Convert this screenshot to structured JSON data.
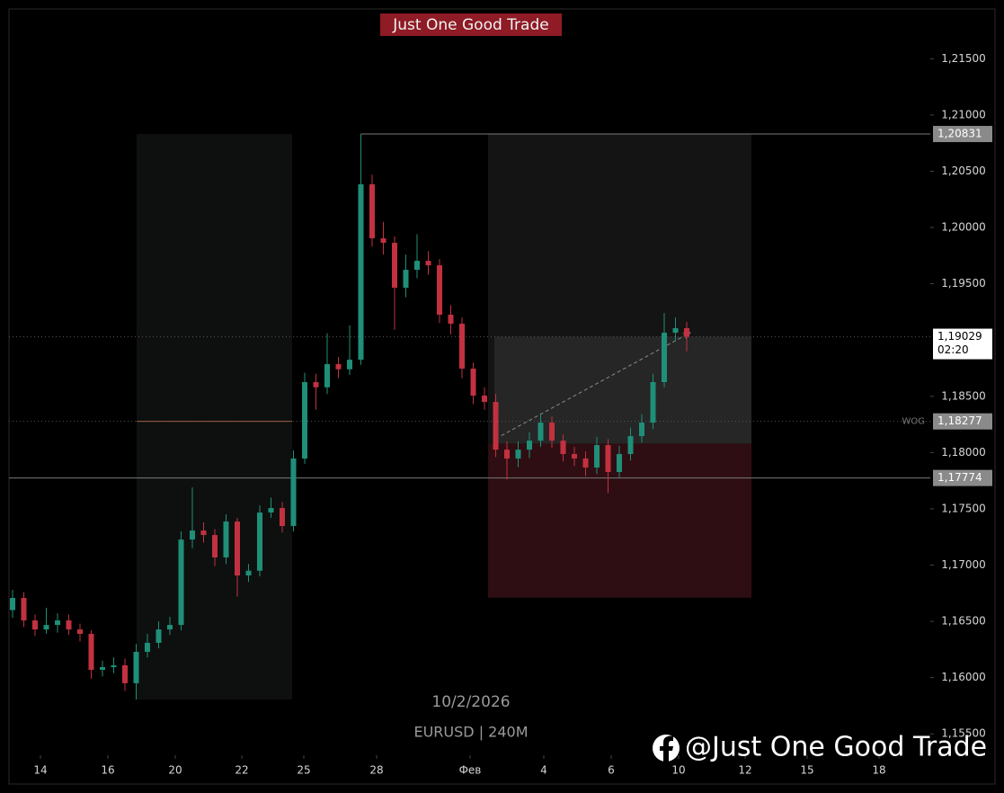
{
  "chart_data": {
    "type": "candlestick",
    "title": "Just One Good Trade",
    "date_label": "10/2/2026",
    "symbol_label": "EURUSD | 240M",
    "watermark": "@Just One Good Trade",
    "up_color": "#1f8f78",
    "down_color": "#c23140",
    "x": [
      0,
      1,
      2,
      3,
      4,
      5,
      6,
      7,
      8,
      9,
      10,
      11,
      12,
      13,
      14,
      15,
      16,
      17,
      18,
      19,
      20,
      21,
      22,
      23,
      24,
      25,
      26,
      27,
      28,
      29,
      30,
      31,
      32,
      33,
      34,
      35,
      36,
      37,
      38,
      39,
      40,
      41,
      42,
      43,
      44,
      45,
      46,
      47,
      48,
      49,
      50,
      51,
      52,
      53,
      54,
      55,
      56,
      57,
      58,
      59,
      60
    ],
    "open": [
      1.166,
      1.16708,
      1.16508,
      1.16428,
      1.16468,
      1.16508,
      1.16428,
      1.16389,
      1.16069,
      1.16093,
      1.16109,
      1.1595,
      1.16229,
      1.16309,
      1.16428,
      1.16468,
      1.17227,
      1.17307,
      1.17267,
      1.17068,
      1.17387,
      1.16908,
      1.1695,
      1.17467,
      1.17507,
      1.17347,
      1.17947,
      1.18626,
      1.1858,
      1.18786,
      1.1874,
      1.18825,
      1.20384,
      1.19904,
      1.19864,
      1.19465,
      1.19624,
      1.19704,
      1.19664,
      1.19225,
      1.19145,
      1.18746,
      1.18506,
      1.1845,
      1.18026,
      1.17947,
      1.18026,
      1.18106,
      1.18266,
      1.18106,
      1.17987,
      1.17947,
      1.17867,
      1.18066,
      1.17827,
      1.17987,
      1.18146,
      1.18266,
      1.18626,
      1.19065,
      1.19105
    ],
    "high": [
      1.1678,
      1.1676,
      1.1656,
      1.1662,
      1.1657,
      1.1656,
      1.1648,
      1.1642,
      1.1615,
      1.1618,
      1.1617,
      1.163,
      1.1639,
      1.165,
      1.1654,
      1.173,
      1.1769,
      1.1738,
      1.1732,
      1.1745,
      1.1742,
      1.1701,
      1.1753,
      1.176,
      1.1756,
      1.1802,
      1.1871,
      1.187,
      1.1906,
      1.1885,
      1.1913,
      1.20831,
      1.2047,
      1.2005,
      1.1992,
      1.1976,
      1.1994,
      1.1979,
      1.1972,
      1.1931,
      1.192,
      1.188,
      1.1858,
      1.1852,
      1.181,
      1.181,
      1.1818,
      1.1834,
      1.1832,
      1.1816,
      1.1805,
      1.1801,
      1.1814,
      1.1812,
      1.1806,
      1.1822,
      1.1834,
      1.187,
      1.1924,
      1.192,
      1.1916
    ],
    "low": [
      1.1653,
      1.1645,
      1.1637,
      1.1639,
      1.164,
      1.1638,
      1.1632,
      1.1599,
      1.1601,
      1.1604,
      1.1588,
      1.15805,
      1.1618,
      1.1626,
      1.1638,
      1.1642,
      1.1715,
      1.172,
      1.1699,
      1.1701,
      1.1672,
      1.1685,
      1.169,
      1.1742,
      1.1729,
      1.173,
      1.179,
      1.1838,
      1.1852,
      1.1866,
      1.1869,
      1.1878,
      1.1983,
      1.1976,
      1.1909,
      1.1938,
      1.1955,
      1.1958,
      1.1915,
      1.1905,
      1.1866,
      1.1843,
      1.1838,
      1.1796,
      1.1776,
      1.1787,
      1.1795,
      1.1805,
      1.1804,
      1.1792,
      1.1788,
      1.1779,
      1.1781,
      1.1764,
      1.1778,
      1.1793,
      1.1809,
      1.1821,
      1.1858,
      1.1899,
      1.189
    ],
    "close": [
      1.16708,
      1.16508,
      1.16428,
      1.16468,
      1.16508,
      1.16428,
      1.16389,
      1.16069,
      1.16093,
      1.16109,
      1.1595,
      1.16229,
      1.16309,
      1.16428,
      1.16468,
      1.17227,
      1.17307,
      1.17267,
      1.17068,
      1.17387,
      1.16908,
      1.1695,
      1.17467,
      1.17507,
      1.17347,
      1.17947,
      1.18626,
      1.1858,
      1.18786,
      1.1874,
      1.18825,
      1.20384,
      1.19904,
      1.19864,
      1.19465,
      1.19624,
      1.19704,
      1.19664,
      1.19225,
      1.19145,
      1.18746,
      1.18506,
      1.1845,
      1.18026,
      1.17947,
      1.18026,
      1.18106,
      1.18266,
      1.18106,
      1.17987,
      1.17947,
      1.17867,
      1.18066,
      1.17827,
      1.17987,
      1.18146,
      1.18266,
      1.18626,
      1.19065,
      1.19105,
      1.19029
    ],
    "xlim": [
      -0.32,
      81.68
    ],
    "xticks": [
      {
        "value": 2.48,
        "label": "14"
      },
      {
        "value": 8.48,
        "label": "16"
      },
      {
        "value": 14.48,
        "label": "20"
      },
      {
        "value": 20.4,
        "label": "22"
      },
      {
        "value": 25.92,
        "label": "25"
      },
      {
        "value": 32.4,
        "label": "28"
      },
      {
        "value": 40.72,
        "label": "Фев"
      },
      {
        "value": 47.28,
        "label": "4"
      },
      {
        "value": 53.28,
        "label": "6"
      },
      {
        "value": 59.28,
        "label": "10"
      },
      {
        "value": 65.2,
        "label": "12"
      },
      {
        "value": 70.72,
        "label": "15"
      },
      {
        "value": 77.12,
        "label": "18"
      }
    ],
    "ylim": [
      1.1531,
      1.21942
    ],
    "yticks": [
      {
        "value": 1.215,
        "label": "1,21500"
      },
      {
        "value": 1.21,
        "label": "1,21000"
      },
      {
        "value": 1.205,
        "label": "1,20500"
      },
      {
        "value": 1.2,
        "label": "1,20000"
      },
      {
        "value": 1.195,
        "label": "1,19500"
      },
      {
        "value": 1.185,
        "label": "1,18500"
      },
      {
        "value": 1.18,
        "label": "1,18000"
      },
      {
        "value": 1.175,
        "label": "1,17500"
      },
      {
        "value": 1.17,
        "label": "1,17000"
      },
      {
        "value": 1.165,
        "label": "1,16500"
      },
      {
        "value": 1.16,
        "label": "1,16000"
      },
      {
        "value": 1.155,
        "label": "1,15500"
      }
    ],
    "levels": [
      {
        "value": 1.20831,
        "label": "1,20831",
        "from": 31
      },
      {
        "value": 1.19029,
        "label": "1,19029",
        "countdown": "02:20"
      },
      {
        "value": 1.18277,
        "label": "1,18277",
        "tag": "WOG"
      },
      {
        "value": 1.17774,
        "label": "1,17774"
      }
    ],
    "zones": [
      {
        "x": [
          11.04,
          24.88
        ],
        "y": [
          1.15805,
          1.20831
        ],
        "color": "#0e100f"
      },
      {
        "x": [
          42.32,
          65.76
        ],
        "y": [
          1.1808,
          1.20831
        ],
        "color": "#141414"
      },
      {
        "x": [
          42.32,
          65.76
        ],
        "y": [
          1.1671,
          1.1808
        ],
        "color": "#2e0e12"
      },
      {
        "x": [
          42.88,
          65.76
        ],
        "y": [
          1.1808,
          1.19029
        ],
        "color": "#262626"
      }
    ],
    "segment": {
      "x": [
        11.04,
        24.88
      ],
      "y": 1.18277,
      "color": "#b0623a"
    },
    "arrow": {
      "x": [
        43.5,
        60.3
      ],
      "y": [
        1.1815,
        1.19065
      ]
    }
  }
}
